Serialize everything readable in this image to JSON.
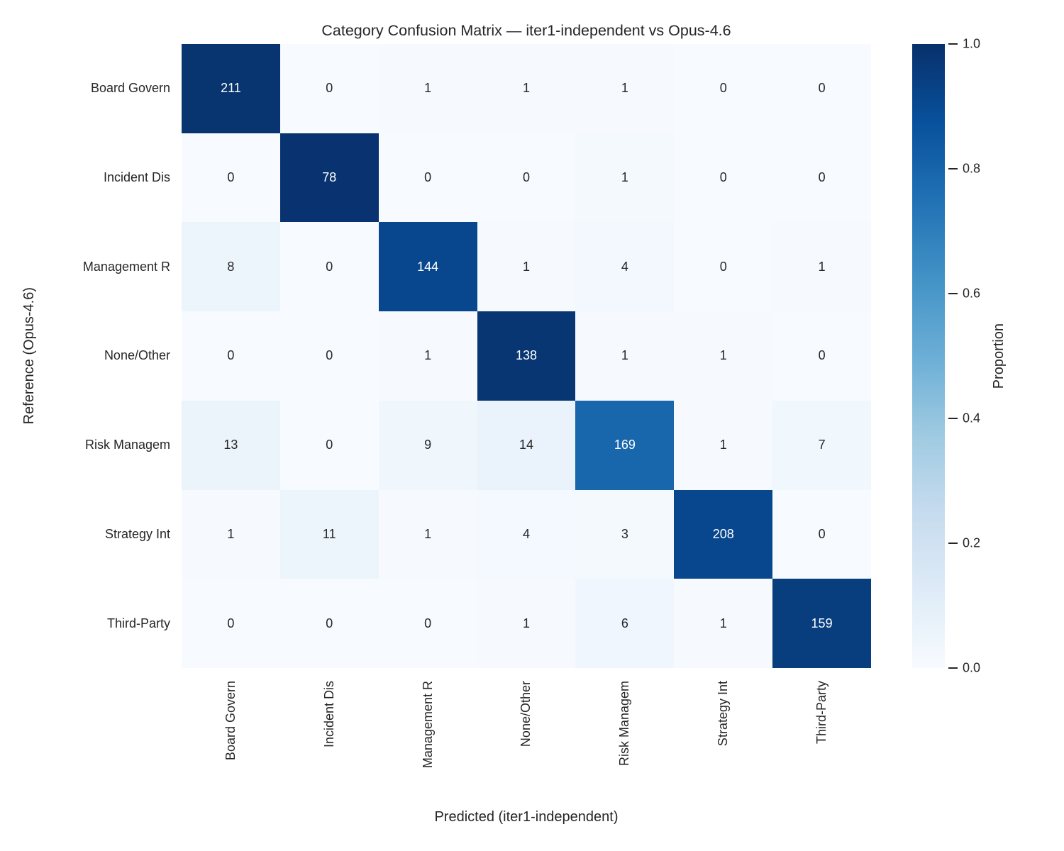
{
  "chart_data": {
    "type": "heatmap",
    "title": "Category Confusion Matrix — iter1-independent vs Opus-4.6",
    "xlabel": "Predicted (iter1-independent)",
    "ylabel": "Reference (Opus-4.6)",
    "categories": [
      "Board Govern",
      "Incident Dis",
      "Management R",
      "None/Other",
      "Risk Managem",
      "Strategy Int",
      "Third-Party"
    ],
    "matrix": [
      [
        211,
        0,
        1,
        1,
        1,
        0,
        0
      ],
      [
        0,
        78,
        0,
        0,
        1,
        0,
        0
      ],
      [
        8,
        0,
        144,
        1,
        4,
        0,
        1
      ],
      [
        0,
        0,
        1,
        138,
        1,
        1,
        0
      ],
      [
        13,
        0,
        9,
        14,
        169,
        1,
        7
      ],
      [
        1,
        11,
        1,
        4,
        3,
        208,
        0
      ],
      [
        0,
        0,
        0,
        1,
        6,
        1,
        159
      ]
    ],
    "normalization": "row",
    "grid": "off",
    "legend_position": "right-colorbar",
    "colorbar": {
      "label": "Proportion",
      "ticks": [
        "1.0",
        "0.8",
        "0.6",
        "0.4",
        "0.2",
        "0.0"
      ],
      "range": [
        0.0,
        1.0
      ]
    },
    "colormap": {
      "name": "Blues",
      "anchors": [
        {
          "pos": 0.0,
          "color": "#f7fbff"
        },
        {
          "pos": 0.125,
          "color": "#deebf7"
        },
        {
          "pos": 0.25,
          "color": "#c6dbef"
        },
        {
          "pos": 0.375,
          "color": "#9ecae1"
        },
        {
          "pos": 0.5,
          "color": "#6baed6"
        },
        {
          "pos": 0.625,
          "color": "#4292c6"
        },
        {
          "pos": 0.75,
          "color": "#2171b5"
        },
        {
          "pos": 0.875,
          "color": "#08519c"
        },
        {
          "pos": 1.0,
          "color": "#08306b"
        }
      ]
    },
    "colors": {
      "annotation_dark": "#262626",
      "annotation_light": "#ffffff",
      "tick_text": "#262626",
      "background": "#ffffff"
    }
  }
}
